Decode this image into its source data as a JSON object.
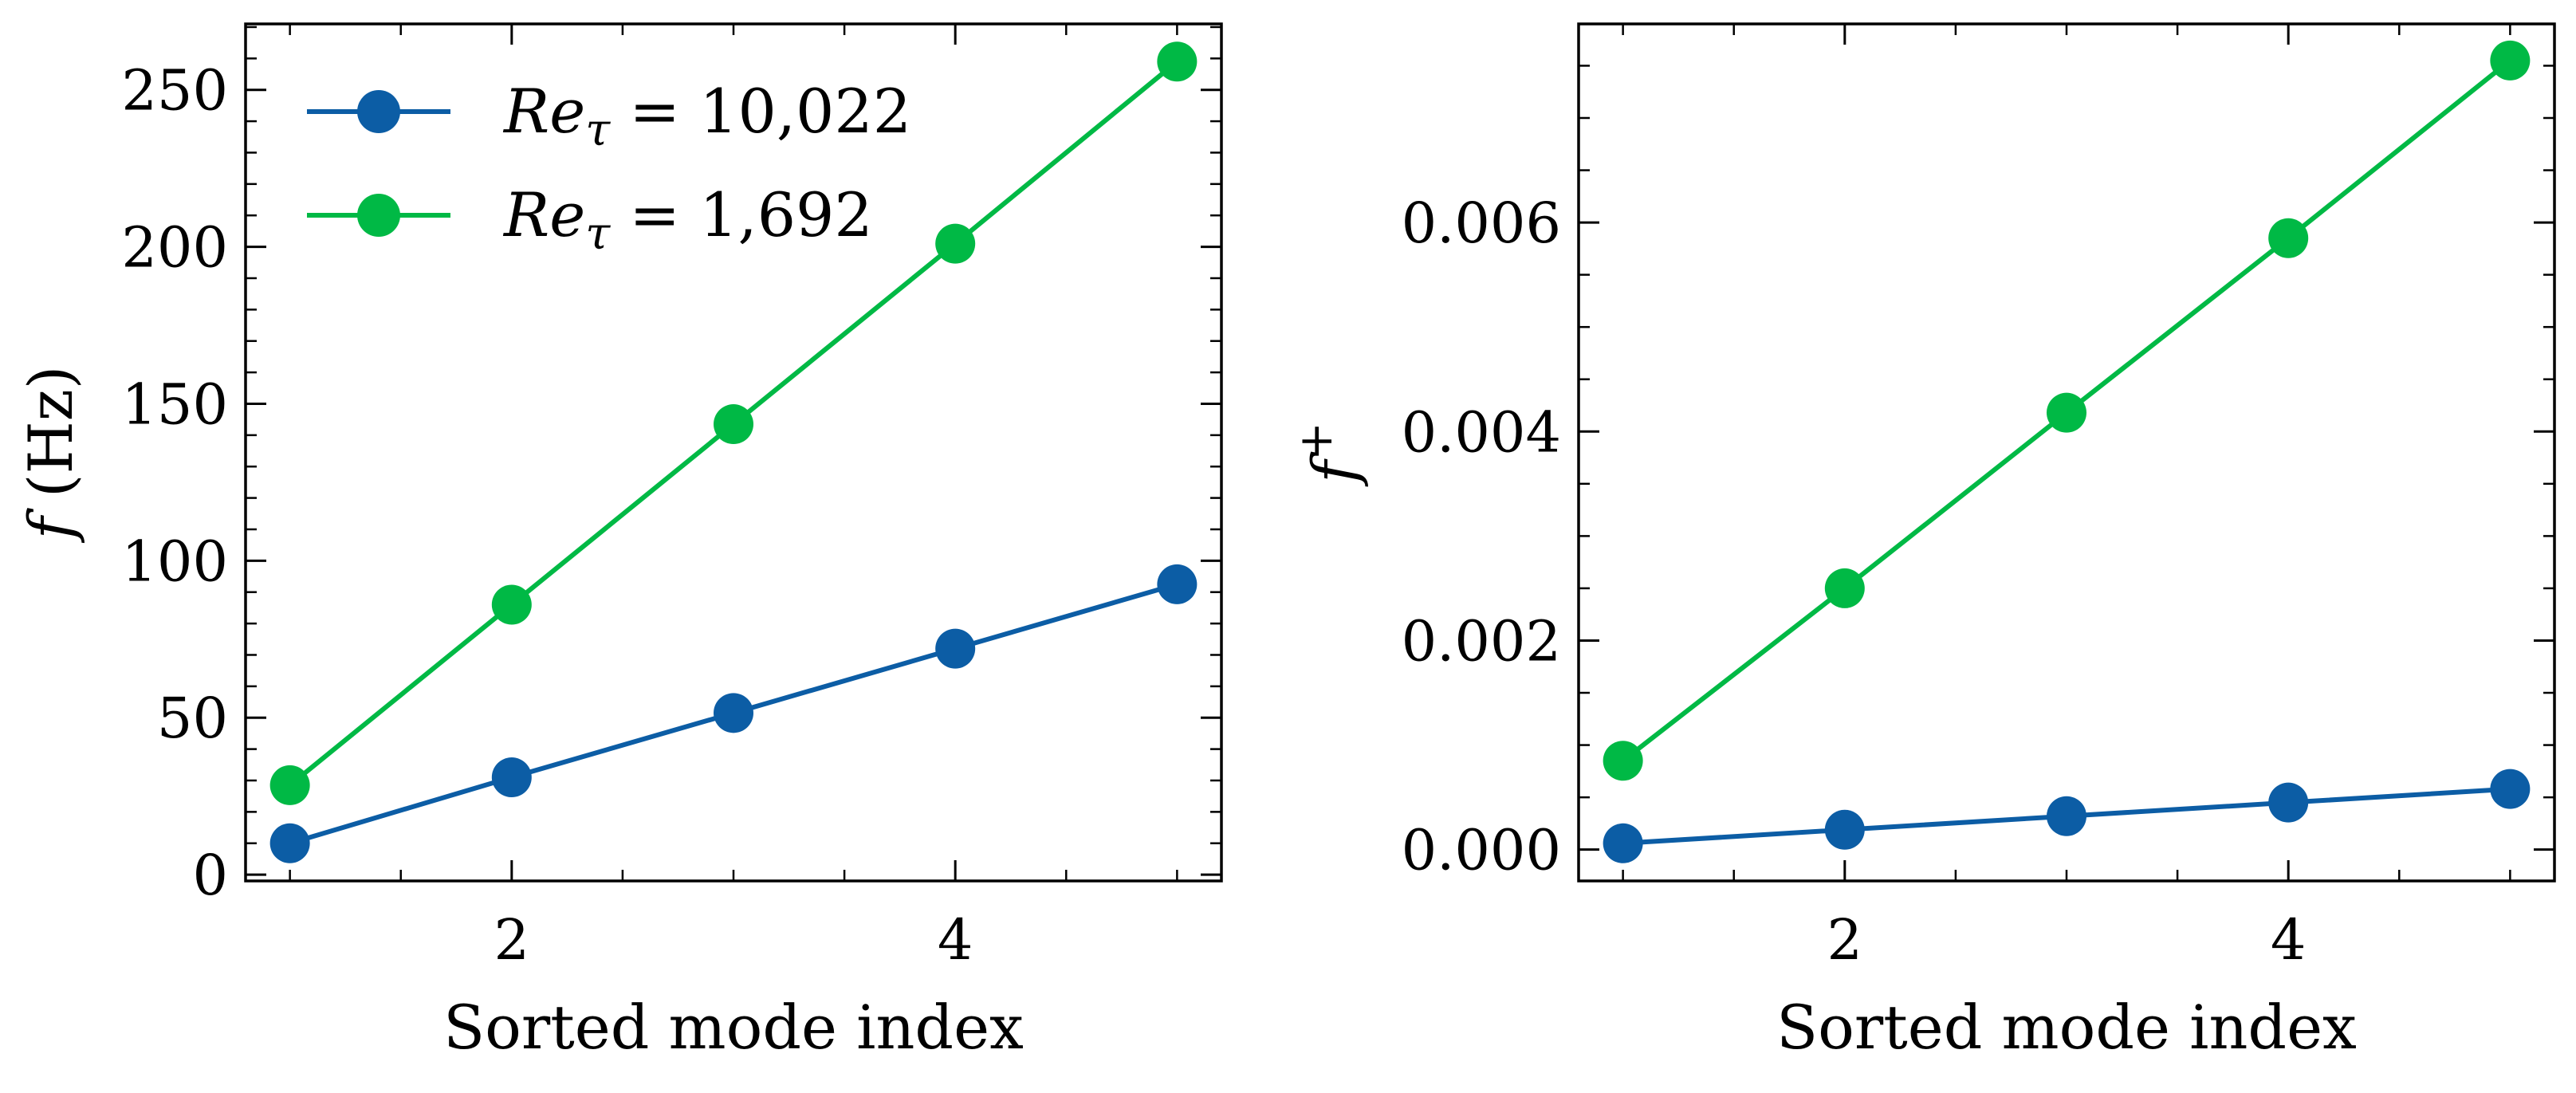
{
  "chart_data": [
    {
      "type": "line",
      "xlabel": "Sorted mode index",
      "ylabel_symbol": "f",
      "ylabel_unit": "(Hz)",
      "x": [
        1,
        2,
        3,
        4,
        5
      ],
      "xlim": [
        0.8,
        5.2
      ],
      "ylim": [
        -2,
        271
      ],
      "xticks": [
        2,
        4
      ],
      "xtick_labels": [
        "2",
        "4"
      ],
      "xminor": [
        1,
        1.5,
        2.5,
        3,
        3.5,
        4.5,
        5
      ],
      "yticks": [
        0,
        50,
        100,
        150,
        200,
        250
      ],
      "ytick_labels": [
        "0",
        "50",
        "100",
        "150",
        "200",
        "250"
      ],
      "yminor": [
        10,
        20,
        30,
        40,
        60,
        70,
        80,
        90,
        110,
        120,
        130,
        140,
        160,
        170,
        180,
        190,
        210,
        220,
        230,
        240,
        260,
        270
      ],
      "legend": "top-left",
      "grid": false,
      "series": [
        {
          "name": "10,022",
          "name_prefix": "Re",
          "name_sub": "τ",
          "name_eq": " = ",
          "color": "#0C5DA5",
          "values": [
            10,
            31,
            51.5,
            72,
            92.5
          ]
        },
        {
          "name": "1,692",
          "name_prefix": "Re",
          "name_sub": "τ",
          "name_eq": " = ",
          "color": "#00B945",
          "values": [
            28.5,
            86,
            143.5,
            201,
            259
          ]
        }
      ]
    },
    {
      "type": "line",
      "xlabel": "Sorted mode index",
      "ylabel_symbol": "f",
      "ylabel_sup": "+",
      "x": [
        1,
        2,
        3,
        4,
        5
      ],
      "xlim": [
        0.8,
        5.2
      ],
      "ylim": [
        -0.0003,
        0.0079
      ],
      "xticks": [
        2,
        4
      ],
      "xtick_labels": [
        "2",
        "4"
      ],
      "xminor": [
        1,
        1.5,
        2.5,
        3,
        3.5,
        4.5,
        5
      ],
      "yticks": [
        0,
        0.002,
        0.004,
        0.006
      ],
      "ytick_labels": [
        "0.000",
        "0.002",
        "0.004",
        "0.006"
      ],
      "yminor": [
        0.0005,
        0.001,
        0.0015,
        0.0025,
        0.003,
        0.0035,
        0.0045,
        0.005,
        0.0055,
        0.0065,
        0.007,
        0.0075
      ],
      "grid": false,
      "series": [
        {
          "name": "10,022",
          "color": "#0C5DA5",
          "values": [
            6e-05,
            0.00019,
            0.00032,
            0.00045,
            0.00058
          ]
        },
        {
          "name": "1,692",
          "color": "#00B945",
          "values": [
            0.00085,
            0.0025,
            0.00418,
            0.00585,
            0.00755
          ]
        }
      ]
    }
  ]
}
